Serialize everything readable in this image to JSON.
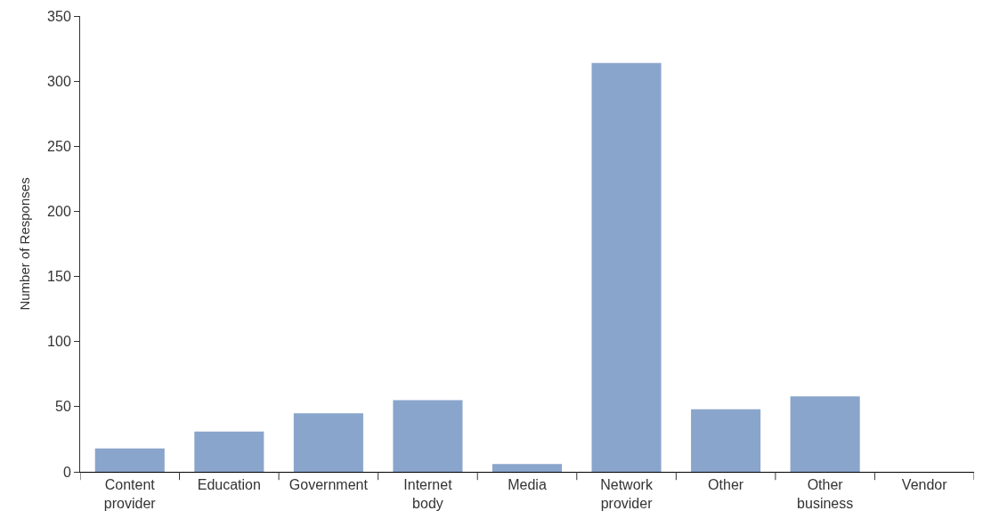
{
  "chart_data": {
    "type": "bar",
    "ylabel": "Number of Responses",
    "categories": [
      "Content provider",
      "Education",
      "Government",
      "Internet body",
      "Media",
      "Network provider",
      "Other",
      "Other business",
      "Vendor"
    ],
    "values": [
      18,
      31,
      45,
      55,
      6,
      314,
      48,
      58,
      0
    ],
    "color": "#8aa5cc",
    "ylim": [
      0,
      350
    ],
    "yticks": [
      0,
      50,
      100,
      150,
      200,
      250,
      300,
      350
    ],
    "legend": false
  }
}
